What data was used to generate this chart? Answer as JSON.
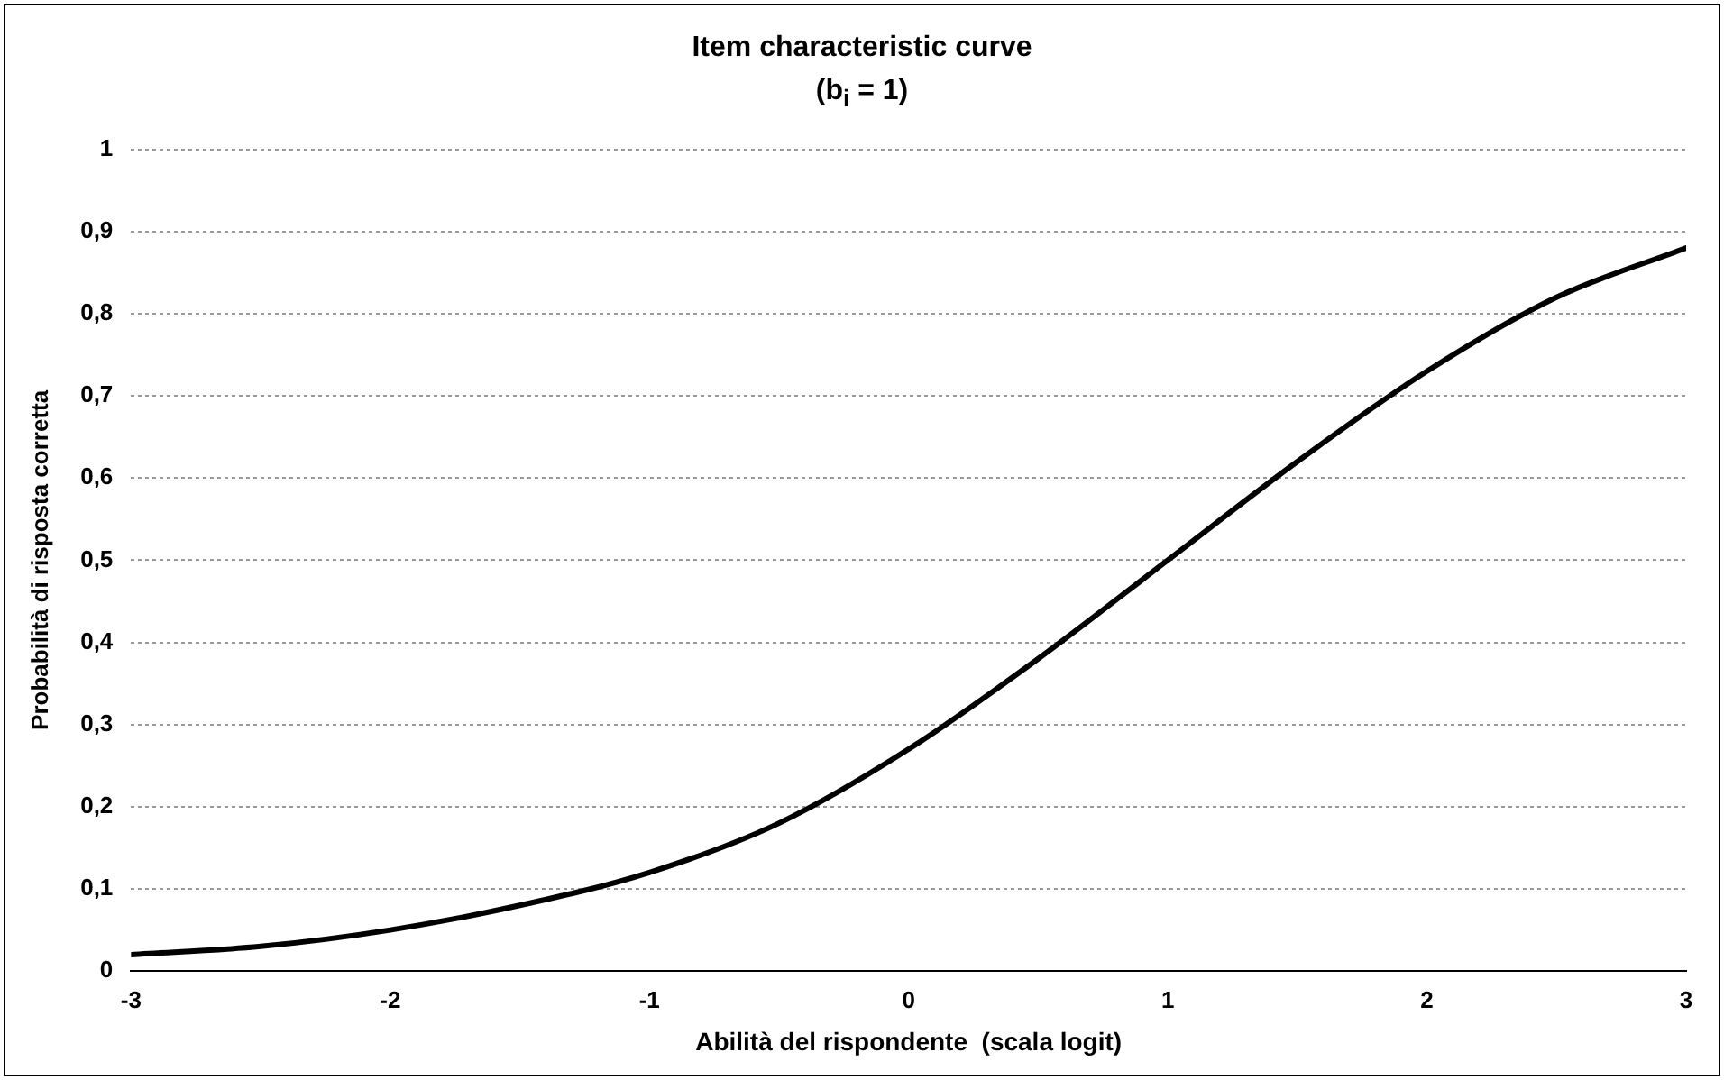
{
  "chart_data": {
    "type": "line",
    "title": "Item characteristic curve",
    "subtitle": "(b$_{i}$ = 1)",
    "xlabel": "Abilità del rispondente  (scala logit)",
    "ylabel": "Probabilità di risposta corretta",
    "x": [
      -3,
      -2.5,
      -2,
      -1.5,
      -1,
      -0.5,
      0,
      0.5,
      1,
      1.5,
      2,
      2.5,
      3
    ],
    "series": [
      {
        "color": "#000000",
        "values": [
          0.02,
          0.03,
          0.05,
          0.08,
          0.12,
          0.18,
          0.27,
          0.38,
          0.5,
          0.62,
          0.73,
          0.82,
          0.88
        ]
      }
    ],
    "xlim": [
      -3,
      3
    ],
    "xticks": [
      -3,
      -2,
      -1,
      0,
      1,
      2,
      3
    ],
    "ylim": [
      0,
      1
    ],
    "yticks": [
      0,
      {
        "value": 0.1,
        "label": "0,1"
      },
      {
        "value": 0.2,
        "label": "0,2"
      },
      {
        "value": 0.3,
        "label": "0,3"
      },
      {
        "value": 0.4,
        "label": "0,4"
      },
      {
        "value": 0.5,
        "label": "0,5"
      },
      {
        "value": 0.6,
        "label": "0,6"
      },
      {
        "value": 0.7,
        "label": "0,7"
      },
      {
        "value": 0.8,
        "label": "0,8"
      },
      {
        "value": 0.9,
        "label": "0,9"
      },
      1
    ],
    "grid": "y",
    "legend": false,
    "marker": "none",
    "line_style": "solid"
  }
}
